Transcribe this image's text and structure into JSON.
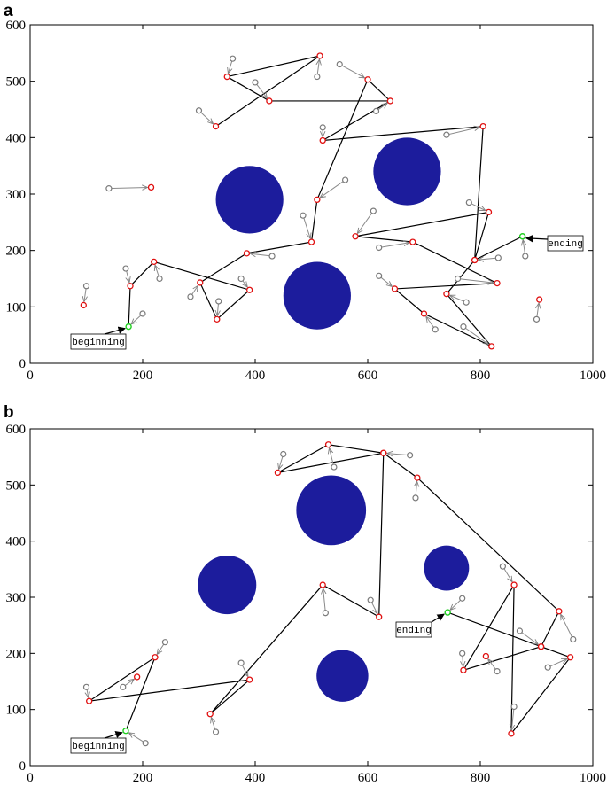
{
  "chart_data": [
    {
      "panel_label": "a",
      "type": "scatter",
      "xlim": [
        0,
        1000
      ],
      "ylim": [
        0,
        600
      ],
      "xticks": [
        0,
        200,
        400,
        600,
        800,
        1000
      ],
      "yticks": [
        0,
        100,
        200,
        300,
        400,
        500,
        600
      ],
      "grid": false,
      "obstacles": [
        {
          "cx": 390,
          "cy": 290,
          "r": 60
        },
        {
          "cx": 670,
          "cy": 340,
          "r": 60
        },
        {
          "cx": 510,
          "cy": 120,
          "r": 60
        }
      ],
      "path": [
        [
          175,
          65
        ],
        [
          178,
          137
        ],
        [
          220,
          180
        ],
        [
          390,
          130
        ],
        [
          332,
          78
        ],
        [
          302,
          143
        ],
        [
          385,
          195
        ],
        [
          500,
          215
        ],
        [
          510,
          290
        ],
        [
          600,
          503
        ],
        [
          640,
          465
        ],
        [
          520,
          395
        ],
        [
          805,
          420
        ],
        [
          790,
          183
        ],
        [
          815,
          268
        ],
        [
          578,
          225
        ],
        [
          680,
          215
        ],
        [
          830,
          142
        ],
        [
          648,
          132
        ],
        [
          700,
          88
        ],
        [
          820,
          30
        ],
        [
          740,
          123
        ],
        [
          790,
          183
        ],
        [
          875,
          225
        ]
      ],
      "extra_red": [
        [
          95,
          103
        ],
        [
          215,
          312
        ],
        [
          905,
          113
        ]
      ],
      "red_upper": [
        [
          350,
          508
        ],
        [
          515,
          545
        ],
        [
          425,
          465
        ],
        [
          330,
          420
        ]
      ],
      "upper_path": [
        [
          330,
          420
        ],
        [
          515,
          545
        ],
        [
          350,
          508
        ],
        [
          425,
          465
        ],
        [
          640,
          465
        ]
      ],
      "gray_arrows": [
        [
          [
            140,
            310
          ],
          [
            215,
            312
          ]
        ],
        [
          [
            100,
            137
          ],
          [
            95,
            103
          ]
        ],
        [
          [
            170,
            168
          ],
          [
            178,
            137
          ]
        ],
        [
          [
            200,
            88
          ],
          [
            175,
            65
          ]
        ],
        [
          [
            230,
            150
          ],
          [
            220,
            180
          ]
        ],
        [
          [
            285,
            118
          ],
          [
            302,
            143
          ]
        ],
        [
          [
            335,
            110
          ],
          [
            332,
            78
          ]
        ],
        [
          [
            375,
            150
          ],
          [
            390,
            130
          ]
        ],
        [
          [
            430,
            190
          ],
          [
            385,
            195
          ]
        ],
        [
          [
            485,
            262
          ],
          [
            500,
            215
          ]
        ],
        [
          [
            560,
            325
          ],
          [
            510,
            290
          ]
        ],
        [
          [
            360,
            540
          ],
          [
            350,
            508
          ]
        ],
        [
          [
            400,
            498
          ],
          [
            425,
            465
          ]
        ],
        [
          [
            510,
            508
          ],
          [
            515,
            545
          ]
        ],
        [
          [
            300,
            448
          ],
          [
            330,
            420
          ]
        ],
        [
          [
            550,
            530
          ],
          [
            600,
            503
          ]
        ],
        [
          [
            615,
            447
          ],
          [
            640,
            465
          ]
        ],
        [
          [
            520,
            418
          ],
          [
            520,
            395
          ]
        ],
        [
          [
            740,
            405
          ],
          [
            805,
            420
          ]
        ],
        [
          [
            610,
            270
          ],
          [
            578,
            225
          ]
        ],
        [
          [
            620,
            205
          ],
          [
            680,
            215
          ]
        ],
        [
          [
            780,
            285
          ],
          [
            815,
            268
          ]
        ],
        [
          [
            620,
            155
          ],
          [
            648,
            132
          ]
        ],
        [
          [
            720,
            60
          ],
          [
            700,
            88
          ]
        ],
        [
          [
            770,
            65
          ],
          [
            820,
            30
          ]
        ],
        [
          [
            775,
            108
          ],
          [
            740,
            123
          ]
        ],
        [
          [
            760,
            150
          ],
          [
            830,
            142
          ]
        ],
        [
          [
            832,
            187
          ],
          [
            790,
            183
          ]
        ],
        [
          [
            880,
            190
          ],
          [
            875,
            225
          ]
        ],
        [
          [
            900,
            78
          ],
          [
            905,
            113
          ]
        ]
      ],
      "start": [
        175,
        65
      ],
      "end": [
        875,
        225
      ],
      "annotations": {
        "start": "beginning",
        "end": "ending"
      }
    },
    {
      "panel_label": "b",
      "type": "scatter",
      "xlim": [
        0,
        1000
      ],
      "ylim": [
        0,
        600
      ],
      "xticks": [
        0,
        200,
        400,
        600,
        800,
        1000
      ],
      "yticks": [
        0,
        100,
        200,
        300,
        400,
        500,
        600
      ],
      "grid": false,
      "obstacles": [
        {
          "cx": 535,
          "cy": 455,
          "r": 62
        },
        {
          "cx": 350,
          "cy": 322,
          "r": 52
        },
        {
          "cx": 740,
          "cy": 352,
          "r": 40
        },
        {
          "cx": 555,
          "cy": 160,
          "r": 46
        }
      ],
      "path": [
        [
          170,
          62
        ],
        [
          222,
          193
        ],
        [
          105,
          115
        ],
        [
          390,
          153
        ],
        [
          320,
          92
        ],
        [
          520,
          322
        ],
        [
          620,
          265
        ],
        [
          628,
          557
        ],
        [
          530,
          572
        ],
        [
          440,
          522
        ],
        [
          628,
          557
        ],
        [
          688,
          513
        ],
        [
          940,
          275
        ],
        [
          908,
          212
        ],
        [
          960,
          193
        ],
        [
          855,
          57
        ],
        [
          860,
          322
        ],
        [
          770,
          170
        ],
        [
          908,
          212
        ],
        [
          742,
          273
        ]
      ],
      "extra_red": [
        [
          190,
          158
        ],
        [
          810,
          195
        ]
      ],
      "gray_arrows": [
        [
          [
            240,
            220
          ],
          [
            222,
            193
          ]
        ],
        [
          [
            100,
            140
          ],
          [
            105,
            115
          ]
        ],
        [
          [
            165,
            140
          ],
          [
            190,
            158
          ]
        ],
        [
          [
            205,
            40
          ],
          [
            170,
            62
          ]
        ],
        [
          [
            375,
            183
          ],
          [
            390,
            153
          ]
        ],
        [
          [
            330,
            60
          ],
          [
            320,
            92
          ]
        ],
        [
          [
            450,
            555
          ],
          [
            440,
            522
          ]
        ],
        [
          [
            540,
            532
          ],
          [
            530,
            572
          ]
        ],
        [
          [
            675,
            553
          ],
          [
            628,
            557
          ]
        ],
        [
          [
            685,
            477
          ],
          [
            688,
            513
          ]
        ],
        [
          [
            525,
            272
          ],
          [
            520,
            322
          ]
        ],
        [
          [
            605,
            295
          ],
          [
            620,
            265
          ]
        ],
        [
          [
            768,
            298
          ],
          [
            742,
            273
          ]
        ],
        [
          [
            840,
            355
          ],
          [
            860,
            322
          ]
        ],
        [
          [
            768,
            200
          ],
          [
            770,
            170
          ]
        ],
        [
          [
            830,
            168
          ],
          [
            810,
            195
          ]
        ],
        [
          [
            870,
            240
          ],
          [
            908,
            212
          ]
        ],
        [
          [
            965,
            225
          ],
          [
            940,
            275
          ]
        ],
        [
          [
            920,
            175
          ],
          [
            960,
            193
          ]
        ],
        [
          [
            860,
            105
          ],
          [
            855,
            57
          ]
        ]
      ],
      "start": [
        170,
        62
      ],
      "end": [
        742,
        273
      ],
      "annotations": {
        "start": "beginning",
        "end": "ending"
      }
    }
  ]
}
